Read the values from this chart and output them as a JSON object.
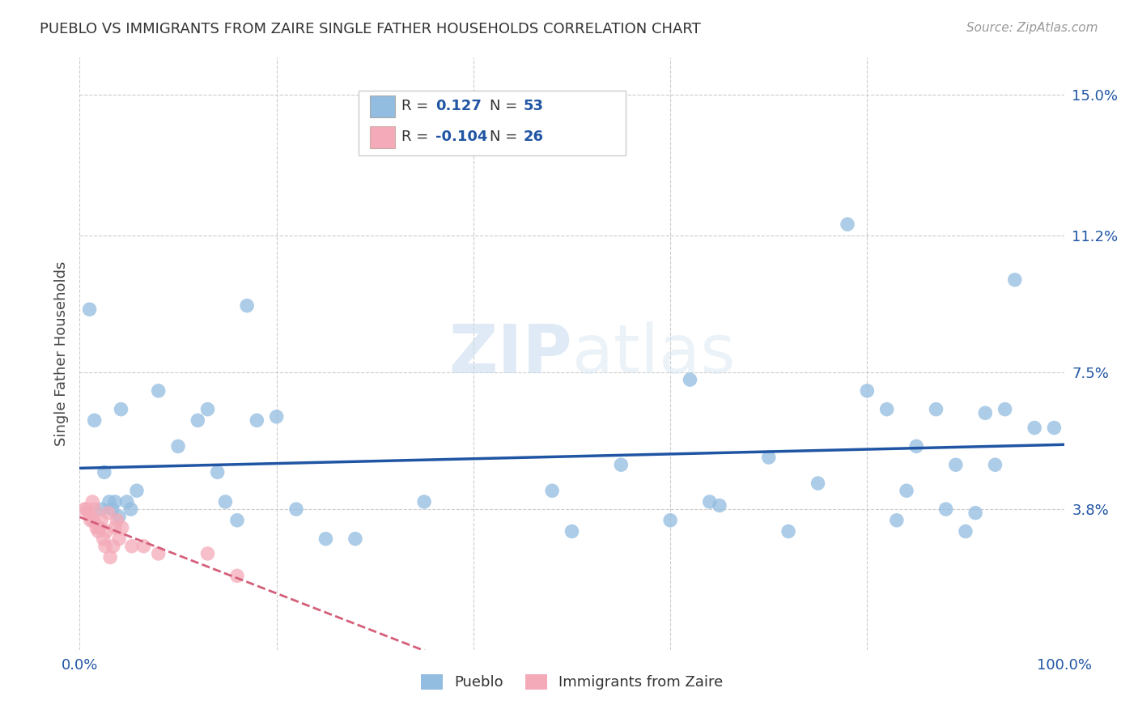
{
  "title": "PUEBLO VS IMMIGRANTS FROM ZAIRE SINGLE FATHER HOUSEHOLDS CORRELATION CHART",
  "source": "Source: ZipAtlas.com",
  "ylabel": "Single Father Households",
  "xlim": [
    0.0,
    1.0
  ],
  "ylim": [
    0.0,
    0.16
  ],
  "yticks": [
    0.038,
    0.075,
    0.112,
    0.15
  ],
  "ytick_labels": [
    "3.8%",
    "7.5%",
    "11.2%",
    "15.0%"
  ],
  "xticks": [
    0.0,
    0.2,
    0.4,
    0.6,
    0.8,
    1.0
  ],
  "xtick_labels": [
    "0.0%",
    "",
    "",
    "",
    "",
    "100.0%"
  ],
  "blue_R": "0.127",
  "blue_N": "53",
  "pink_R": "-0.104",
  "pink_N": "26",
  "blue_color": "#92bce0",
  "pink_color": "#f4aab8",
  "blue_line_color": "#2055a4",
  "pink_line_color": "#d45f7a",
  "watermark_zip": "ZIP",
  "watermark_atlas": "atlas",
  "background_color": "#ffffff",
  "legend_label_blue": "Pueblo",
  "legend_label_pink": "Immigrants from Zaire",
  "blue_dots": [
    [
      0.01,
      0.092
    ],
    [
      0.015,
      0.062
    ],
    [
      0.022,
      0.038
    ],
    [
      0.025,
      0.048
    ],
    [
      0.03,
      0.04
    ],
    [
      0.033,
      0.038
    ],
    [
      0.036,
      0.04
    ],
    [
      0.04,
      0.036
    ],
    [
      0.042,
      0.065
    ],
    [
      0.048,
      0.04
    ],
    [
      0.052,
      0.038
    ],
    [
      0.058,
      0.043
    ],
    [
      0.08,
      0.07
    ],
    [
      0.1,
      0.055
    ],
    [
      0.12,
      0.062
    ],
    [
      0.13,
      0.065
    ],
    [
      0.14,
      0.048
    ],
    [
      0.148,
      0.04
    ],
    [
      0.16,
      0.035
    ],
    [
      0.17,
      0.093
    ],
    [
      0.18,
      0.062
    ],
    [
      0.2,
      0.063
    ],
    [
      0.22,
      0.038
    ],
    [
      0.25,
      0.03
    ],
    [
      0.28,
      0.03
    ],
    [
      0.35,
      0.04
    ],
    [
      0.48,
      0.043
    ],
    [
      0.5,
      0.032
    ],
    [
      0.55,
      0.05
    ],
    [
      0.6,
      0.035
    ],
    [
      0.62,
      0.073
    ],
    [
      0.64,
      0.04
    ],
    [
      0.65,
      0.039
    ],
    [
      0.7,
      0.052
    ],
    [
      0.72,
      0.032
    ],
    [
      0.75,
      0.045
    ],
    [
      0.78,
      0.115
    ],
    [
      0.8,
      0.07
    ],
    [
      0.82,
      0.065
    ],
    [
      0.83,
      0.035
    ],
    [
      0.84,
      0.043
    ],
    [
      0.85,
      0.055
    ],
    [
      0.87,
      0.065
    ],
    [
      0.88,
      0.038
    ],
    [
      0.89,
      0.05
    ],
    [
      0.9,
      0.032
    ],
    [
      0.91,
      0.037
    ],
    [
      0.92,
      0.064
    ],
    [
      0.93,
      0.05
    ],
    [
      0.94,
      0.065
    ],
    [
      0.95,
      0.1
    ],
    [
      0.97,
      0.06
    ],
    [
      0.99,
      0.06
    ]
  ],
  "pink_dots": [
    [
      0.005,
      0.038
    ],
    [
      0.007,
      0.038
    ],
    [
      0.009,
      0.037
    ],
    [
      0.011,
      0.035
    ],
    [
      0.013,
      0.04
    ],
    [
      0.014,
      0.035
    ],
    [
      0.015,
      0.038
    ],
    [
      0.017,
      0.033
    ],
    [
      0.019,
      0.032
    ],
    [
      0.02,
      0.033
    ],
    [
      0.022,
      0.035
    ],
    [
      0.024,
      0.03
    ],
    [
      0.026,
      0.028
    ],
    [
      0.027,
      0.032
    ],
    [
      0.029,
      0.037
    ],
    [
      0.031,
      0.025
    ],
    [
      0.034,
      0.028
    ],
    [
      0.036,
      0.033
    ],
    [
      0.038,
      0.035
    ],
    [
      0.04,
      0.03
    ],
    [
      0.043,
      0.033
    ],
    [
      0.053,
      0.028
    ],
    [
      0.065,
      0.028
    ],
    [
      0.08,
      0.026
    ],
    [
      0.13,
      0.026
    ],
    [
      0.16,
      0.02
    ]
  ],
  "pink_line_xrange": [
    0.0,
    0.37
  ]
}
